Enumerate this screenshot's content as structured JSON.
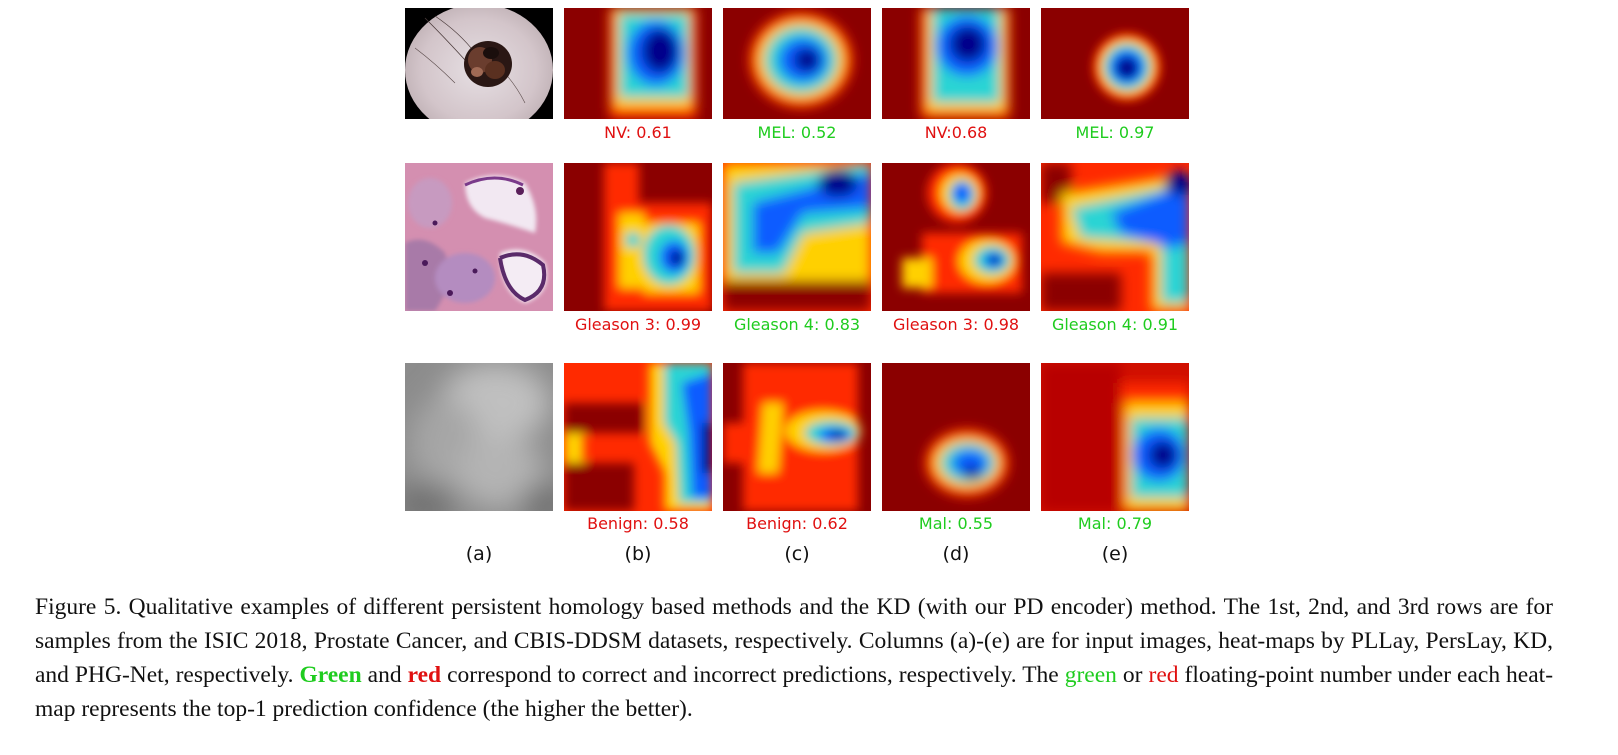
{
  "colors": {
    "correct": "#1fcc1f",
    "incorrect": "#e01010"
  },
  "figure": {
    "rows": [
      {
        "labels": [
          {
            "text": "NV: 0.61",
            "status": "incorrect"
          },
          {
            "text": "MEL: 0.52",
            "status": "correct"
          },
          {
            "text": "NV:0.68",
            "status": "incorrect"
          },
          {
            "text": "MEL: 0.97",
            "status": "correct"
          }
        ]
      },
      {
        "labels": [
          {
            "text": "Gleason 3: 0.99",
            "status": "incorrect"
          },
          {
            "text": "Gleason 4: 0.83",
            "status": "correct"
          },
          {
            "text": "Gleason 3: 0.98",
            "status": "incorrect"
          },
          {
            "text": "Gleason 4: 0.91",
            "status": "correct"
          }
        ]
      },
      {
        "labels": [
          {
            "text": "Benign: 0.58",
            "status": "incorrect"
          },
          {
            "text": "Benign: 0.62",
            "status": "incorrect"
          },
          {
            "text": "Mal: 0.55",
            "status": "correct"
          },
          {
            "text": "Mal: 0.79",
            "status": "correct"
          }
        ]
      }
    ],
    "column_labels": [
      "(a)",
      "(b)",
      "(c)",
      "(d)",
      "(e)"
    ]
  },
  "caption": {
    "part1": "Figure 5. Qualitative examples of different persistent homology based methods and the KD (with our PD encoder) method. The 1st, 2nd, and 3rd rows are for samples from the ISIC 2018, Prostate Cancer, and CBIS-DDSM datasets, respectively. Columns (a)-(e) are for input images, heat-maps by PLLay, PersLay, KD, and PHG-Net, respectively. ",
    "green_bold": "Green",
    "and": " and ",
    "red_bold": "red",
    "part2": " correspond to correct and incorrect predictions, respectively. The ",
    "green": "green",
    "or": " or ",
    "red": "red",
    "part3": " floating-point number under each heat-map represents the top-1 prediction confidence (the higher the better)."
  }
}
